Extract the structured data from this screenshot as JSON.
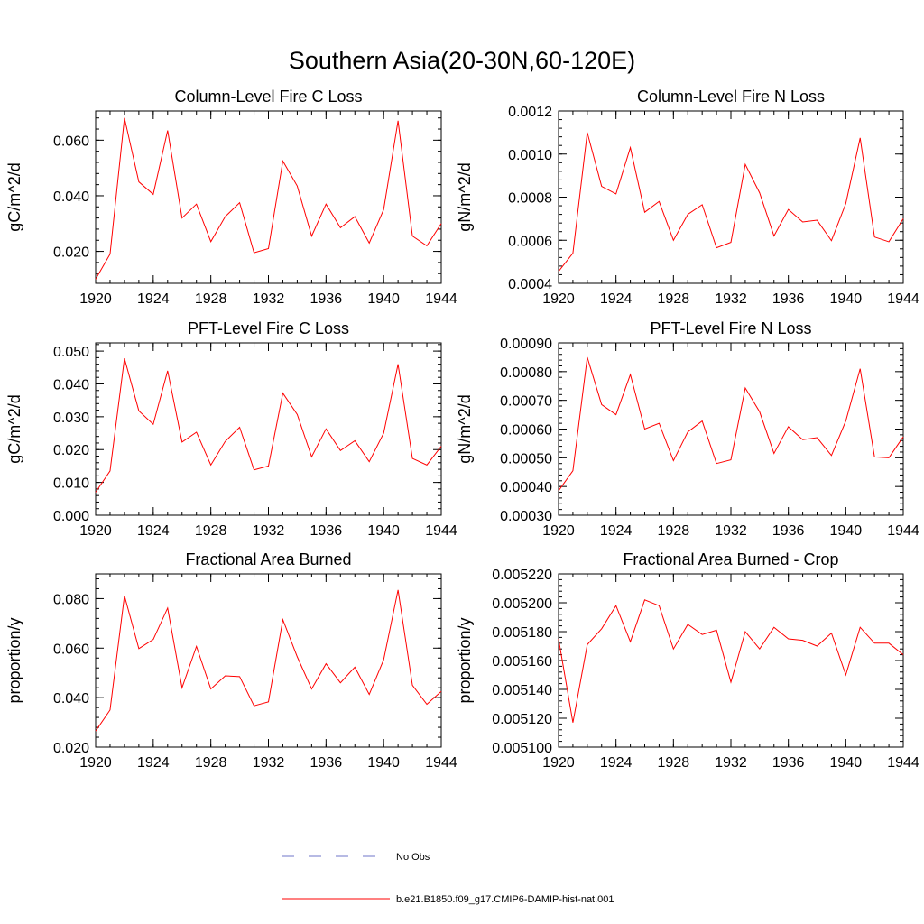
{
  "figure_title": "Southern Asia(20-30N,60-120E)",
  "colors": {
    "model_line": "#ff0000",
    "obs_line": "#6f74c8",
    "axis": "#000000"
  },
  "legend": {
    "entries": [
      {
        "label": "No Obs",
        "style": "dashed",
        "color": "#6f74c8"
      },
      {
        "label": "b.e21.B1850.f09_g17.CMIP6-DAMIP-hist-nat.001",
        "style": "solid",
        "color": "#ff0000"
      }
    ]
  },
  "chart_data": [
    {
      "type": "line",
      "title": "Column-Level Fire C Loss",
      "ylabel": "gC/m^2/d",
      "xlim": [
        1920,
        1944
      ],
      "ylim": [
        0.0085,
        0.0705
      ],
      "x_ticks": [
        "1920",
        "1924",
        "1928",
        "1932",
        "1936",
        "1940",
        "1944"
      ],
      "y_ticks": [
        {
          "value": 0.02,
          "label": "0.020"
        },
        {
          "value": 0.04,
          "label": "0.040"
        },
        {
          "value": 0.06,
          "label": "0.060"
        }
      ],
      "series": [
        {
          "x": [
            1920,
            1921,
            1922,
            1923,
            1924,
            1925,
            1926,
            1927,
            1928,
            1929,
            1930,
            1931,
            1932,
            1933,
            1934,
            1935,
            1936,
            1937,
            1938,
            1939,
            1940,
            1941,
            1942,
            1943,
            1944
          ],
          "values": [
            0.01,
            0.019,
            0.068,
            0.045,
            0.0405,
            0.0635,
            0.032,
            0.037,
            0.0235,
            0.0325,
            0.0375,
            0.0195,
            0.021,
            0.0525,
            0.0435,
            0.0255,
            0.037,
            0.0285,
            0.0325,
            0.023,
            0.035,
            0.067,
            0.0255,
            0.022,
            0.03
          ]
        }
      ]
    },
    {
      "type": "line",
      "title": "Column-Level Fire N Loss",
      "ylabel": "gN/m^2/d",
      "xlim": [
        1920,
        1944
      ],
      "ylim": [
        0.0004,
        0.0012
      ],
      "x_ticks": [
        "1920",
        "1924",
        "1928",
        "1932",
        "1936",
        "1940",
        "1944"
      ],
      "y_ticks": [
        {
          "value": 0.0004,
          "label": "0.0004"
        },
        {
          "value": 0.0006,
          "label": "0.0006"
        },
        {
          "value": 0.0008,
          "label": "0.0008"
        },
        {
          "value": 0.001,
          "label": "0.0010"
        },
        {
          "value": 0.0012,
          "label": "0.0012"
        }
      ],
      "series": [
        {
          "x": [
            1920,
            1921,
            1922,
            1923,
            1924,
            1925,
            1926,
            1927,
            1928,
            1929,
            1930,
            1931,
            1932,
            1933,
            1934,
            1935,
            1936,
            1937,
            1938,
            1939,
            1940,
            1941,
            1942,
            1943,
            1944
          ],
          "values": [
            0.000455,
            0.00054,
            0.0011,
            0.00085,
            0.000815,
            0.00103,
            0.00073,
            0.00078,
            0.0006,
            0.00072,
            0.000765,
            0.000565,
            0.00059,
            0.000952,
            0.00082,
            0.00062,
            0.000743,
            0.000685,
            0.000693,
            0.000598,
            0.00077,
            0.001075,
            0.000615,
            0.000593,
            0.0007
          ]
        }
      ]
    },
    {
      "type": "line",
      "title": "PFT-Level Fire C Loss",
      "ylabel": "gC/m^2/d",
      "xlim": [
        1920,
        1944
      ],
      "ylim": [
        0.0,
        0.0525
      ],
      "x_ticks": [
        "1920",
        "1924",
        "1928",
        "1932",
        "1936",
        "1940",
        "1944"
      ],
      "y_ticks": [
        {
          "value": 0.0,
          "label": "0.000"
        },
        {
          "value": 0.01,
          "label": "0.010"
        },
        {
          "value": 0.02,
          "label": "0.020"
        },
        {
          "value": 0.03,
          "label": "0.030"
        },
        {
          "value": 0.04,
          "label": "0.040"
        },
        {
          "value": 0.05,
          "label": "0.050"
        }
      ],
      "series": [
        {
          "x": [
            1920,
            1921,
            1922,
            1923,
            1924,
            1925,
            1926,
            1927,
            1928,
            1929,
            1930,
            1931,
            1932,
            1933,
            1934,
            1935,
            1936,
            1937,
            1938,
            1939,
            1940,
            1941,
            1942,
            1943,
            1944
          ],
          "values": [
            0.007,
            0.0135,
            0.0478,
            0.0318,
            0.0277,
            0.044,
            0.0223,
            0.0253,
            0.0153,
            0.0225,
            0.0268,
            0.0138,
            0.015,
            0.0372,
            0.0307,
            0.0178,
            0.0263,
            0.0197,
            0.0227,
            0.0163,
            0.025,
            0.046,
            0.0173,
            0.0153,
            0.021
          ]
        }
      ]
    },
    {
      "type": "line",
      "title": "PFT-Level Fire N Loss",
      "ylabel": "gN/m^2/d",
      "xlim": [
        1920,
        1944
      ],
      "ylim": [
        0.0003,
        0.0009
      ],
      "x_ticks": [
        "1920",
        "1924",
        "1928",
        "1932",
        "1936",
        "1940",
        "1944"
      ],
      "y_ticks": [
        {
          "value": 0.0003,
          "label": "0.00030"
        },
        {
          "value": 0.0004,
          "label": "0.00040"
        },
        {
          "value": 0.0005,
          "label": "0.00050"
        },
        {
          "value": 0.0006,
          "label": "0.00060"
        },
        {
          "value": 0.0007,
          "label": "0.00070"
        },
        {
          "value": 0.0008,
          "label": "0.00080"
        },
        {
          "value": 0.0009,
          "label": "0.00090"
        }
      ],
      "series": [
        {
          "x": [
            1920,
            1921,
            1922,
            1923,
            1924,
            1925,
            1926,
            1927,
            1928,
            1929,
            1930,
            1931,
            1932,
            1933,
            1934,
            1935,
            1936,
            1937,
            1938,
            1939,
            1940,
            1941,
            1942,
            1943,
            1944
          ],
          "values": [
            0.000385,
            0.000455,
            0.00085,
            0.000685,
            0.00065,
            0.00079,
            0.0006,
            0.00062,
            0.00049,
            0.00059,
            0.000628,
            0.00048,
            0.000493,
            0.000743,
            0.00066,
            0.000515,
            0.000608,
            0.000563,
            0.00057,
            0.000508,
            0.000628,
            0.00081,
            0.000503,
            0.0005,
            0.000573
          ]
        }
      ]
    },
    {
      "type": "line",
      "title": "Fractional Area Burned",
      "ylabel": "proportion/y",
      "xlim": [
        1920,
        1944
      ],
      "ylim": [
        0.02,
        0.09
      ],
      "x_ticks": [
        "1920",
        "1924",
        "1928",
        "1932",
        "1936",
        "1940",
        "1944"
      ],
      "y_ticks": [
        {
          "value": 0.02,
          "label": "0.020"
        },
        {
          "value": 0.04,
          "label": "0.040"
        },
        {
          "value": 0.06,
          "label": "0.060"
        },
        {
          "value": 0.08,
          "label": "0.080"
        }
      ],
      "series": [
        {
          "x": [
            1920,
            1921,
            1922,
            1923,
            1924,
            1925,
            1926,
            1927,
            1928,
            1929,
            1930,
            1931,
            1932,
            1933,
            1934,
            1935,
            1936,
            1937,
            1938,
            1939,
            1940,
            1941,
            1942,
            1943,
            1944
          ],
          "values": [
            0.0265,
            0.035,
            0.0812,
            0.0598,
            0.0635,
            0.0762,
            0.044,
            0.0607,
            0.0435,
            0.0488,
            0.0485,
            0.0367,
            0.0383,
            0.0715,
            0.0565,
            0.0435,
            0.0537,
            0.046,
            0.0523,
            0.0413,
            0.0553,
            0.0835,
            0.045,
            0.0373,
            0.0425
          ]
        }
      ]
    },
    {
      "type": "line",
      "title": "Fractional Area Burned - Crop",
      "ylabel": "proportion/y",
      "xlim": [
        1920,
        1944
      ],
      "ylim": [
        0.0051,
        0.00522
      ],
      "x_ticks": [
        "1920",
        "1924",
        "1928",
        "1932",
        "1936",
        "1940",
        "1944"
      ],
      "y_ticks": [
        {
          "value": 0.0051,
          "label": "0.005100"
        },
        {
          "value": 0.00512,
          "label": "0.005120"
        },
        {
          "value": 0.00514,
          "label": "0.005140"
        },
        {
          "value": 0.00516,
          "label": "0.005160"
        },
        {
          "value": 0.00518,
          "label": "0.005180"
        },
        {
          "value": 0.0052,
          "label": "0.005200"
        },
        {
          "value": 0.00522,
          "label": "0.005220"
        }
      ],
      "series": [
        {
          "x": [
            1920,
            1921,
            1922,
            1923,
            1924,
            1925,
            1926,
            1927,
            1928,
            1929,
            1930,
            1931,
            1932,
            1933,
            1934,
            1935,
            1936,
            1937,
            1938,
            1939,
            1940,
            1941,
            1942,
            1943,
            1944
          ],
          "values": [
            0.005175,
            0.005117,
            0.005171,
            0.005182,
            0.005198,
            0.005173,
            0.005202,
            0.005198,
            0.005168,
            0.005185,
            0.005178,
            0.005181,
            0.005145,
            0.00518,
            0.005168,
            0.005183,
            0.005175,
            0.005174,
            0.00517,
            0.005179,
            0.00515,
            0.005183,
            0.005172,
            0.005172,
            0.005164
          ]
        }
      ]
    }
  ]
}
